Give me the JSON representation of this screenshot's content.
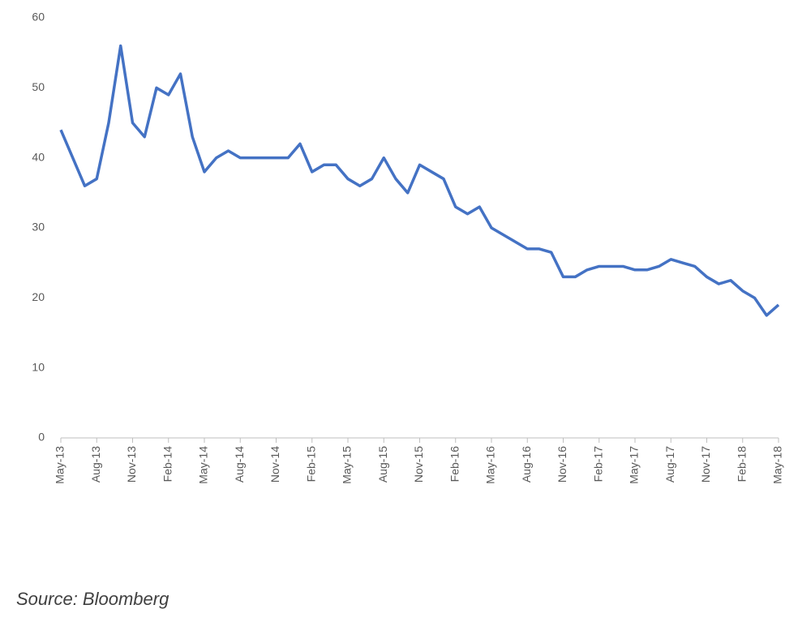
{
  "chart_data": {
    "type": "line",
    "x": [
      "2013-05",
      "2013-06",
      "2013-07",
      "2013-08",
      "2013-09",
      "2013-10",
      "2013-11",
      "2013-12",
      "2014-01",
      "2014-02",
      "2014-03",
      "2014-04",
      "2014-05",
      "2014-06",
      "2014-07",
      "2014-08",
      "2014-09",
      "2014-10",
      "2014-11",
      "2014-12",
      "2015-01",
      "2015-02",
      "2015-03",
      "2015-04",
      "2015-05",
      "2015-06",
      "2015-07",
      "2015-08",
      "2015-09",
      "2015-10",
      "2015-11",
      "2015-12",
      "2016-01",
      "2016-02",
      "2016-03",
      "2016-04",
      "2016-05",
      "2016-06",
      "2016-07",
      "2016-08",
      "2016-09",
      "2016-10",
      "2016-11",
      "2016-12",
      "2017-01",
      "2017-02",
      "2017-03",
      "2017-04",
      "2017-05",
      "2017-06",
      "2017-07",
      "2017-08",
      "2017-09",
      "2017-10",
      "2017-11",
      "2017-12",
      "2018-01",
      "2018-02",
      "2018-03",
      "2018-04",
      "2018-05"
    ],
    "series": [
      {
        "color": "#4472c4",
        "values": [
          44,
          40,
          36,
          37,
          45,
          56,
          45,
          43,
          50,
          49,
          52,
          43,
          38,
          40,
          41,
          40,
          40,
          40,
          40,
          40,
          42,
          38,
          39,
          39,
          37,
          36,
          37,
          40,
          37,
          35,
          39,
          38,
          37,
          33,
          32,
          33,
          30,
          29,
          28,
          27,
          27,
          26.5,
          23,
          23,
          24,
          24.5,
          24.5,
          24.5,
          24,
          24,
          24.5,
          25.5,
          25,
          24.5,
          23,
          22,
          22.5,
          21,
          20,
          17.5,
          19
        ]
      }
    ],
    "ylim": [
      0,
      60
    ],
    "yticks": [
      0,
      10,
      20,
      30,
      40,
      50,
      60
    ],
    "xticks": [
      {
        "value": "2013-05",
        "label": "May-13"
      },
      {
        "value": "2013-08",
        "label": "Aug-13"
      },
      {
        "value": "2013-11",
        "label": "Nov-13"
      },
      {
        "value": "2014-02",
        "label": "Feb-14"
      },
      {
        "value": "2014-05",
        "label": "May-14"
      },
      {
        "value": "2014-08",
        "label": "Aug-14"
      },
      {
        "value": "2014-11",
        "label": "Nov-14"
      },
      {
        "value": "2015-02",
        "label": "Feb-15"
      },
      {
        "value": "2015-05",
        "label": "May-15"
      },
      {
        "value": "2015-08",
        "label": "Aug-15"
      },
      {
        "value": "2015-11",
        "label": "Nov-15"
      },
      {
        "value": "2016-02",
        "label": "Feb-16"
      },
      {
        "value": "2016-05",
        "label": "May-16"
      },
      {
        "value": "2016-08",
        "label": "Aug-16"
      },
      {
        "value": "2016-11",
        "label": "Nov-16"
      },
      {
        "value": "2017-02",
        "label": "Feb-17"
      },
      {
        "value": "2017-05",
        "label": "May-17"
      },
      {
        "value": "2017-08",
        "label": "Aug-17"
      },
      {
        "value": "2017-11",
        "label": "Nov-17"
      },
      {
        "value": "2018-02",
        "label": "Feb-18"
      },
      {
        "value": "2018-05",
        "label": "May-18"
      }
    ],
    "grid": false,
    "source": "Source: Bloomberg"
  }
}
